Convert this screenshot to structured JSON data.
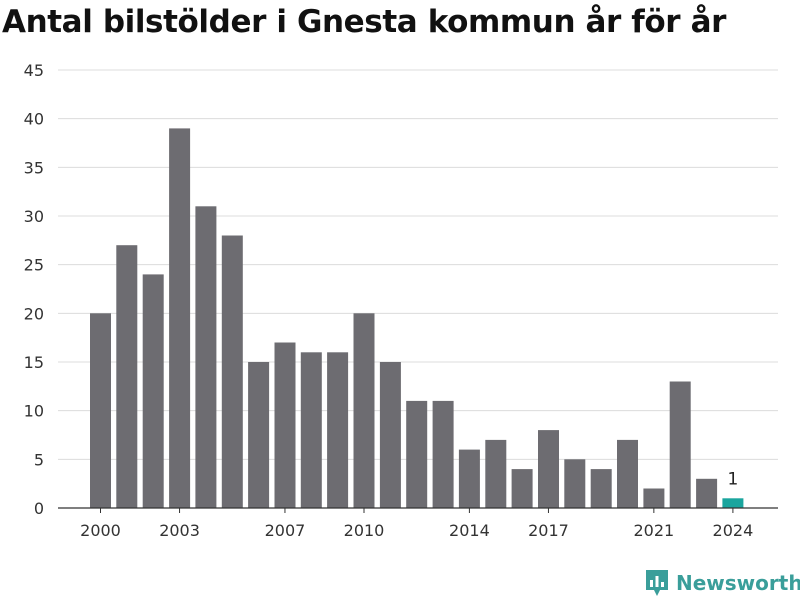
{
  "title": "Antal bilstölder i Gnesta kommun år för år",
  "brand": {
    "name": "Newsworthy",
    "icon": "newsworthy-logo-icon"
  },
  "colors": {
    "bar": "#6d6c71",
    "highlight": "#1aa59e",
    "grid": "#dcdcdc",
    "axis": "#333333",
    "brand": "#3a9e9a"
  },
  "chart_data": {
    "type": "bar",
    "title": "Antal bilstölder i Gnesta kommun år för år",
    "categories": [
      "2000",
      "2001",
      "2002",
      "2003",
      "2004",
      "2005",
      "2006",
      "2007",
      "2008",
      "2009",
      "2010",
      "2011",
      "2012",
      "2013",
      "2014",
      "2015",
      "2016",
      "2017",
      "2018",
      "2019",
      "2020",
      "2021",
      "2022",
      "2023",
      "2024"
    ],
    "values": [
      20,
      27,
      24,
      39,
      31,
      28,
      15,
      17,
      16,
      16,
      20,
      15,
      11,
      11,
      6,
      7,
      4,
      8,
      5,
      4,
      7,
      2,
      13,
      3,
      1
    ],
    "x_tick_labels": [
      "2000",
      "2003",
      "2007",
      "2010",
      "2014",
      "2017",
      "2021",
      "2024"
    ],
    "y_ticks": [
      0,
      5,
      10,
      15,
      20,
      25,
      30,
      35,
      40,
      45
    ],
    "ylim": [
      0,
      45
    ],
    "highlight": {
      "category": "2024",
      "label": "1"
    },
    "grid": true,
    "legend": "none",
    "xlabel": "",
    "ylabel": ""
  }
}
